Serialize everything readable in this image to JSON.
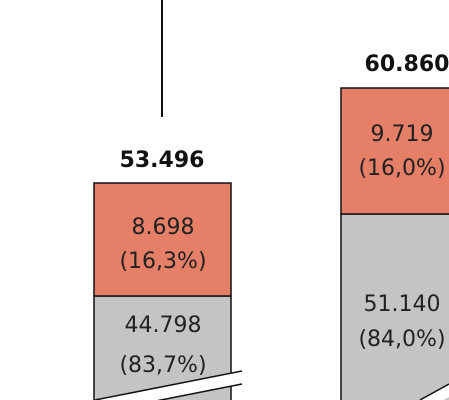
{
  "chart_data": {
    "type": "bar",
    "stacked": true,
    "axis_break": true,
    "bars": [
      {
        "total_label": "53.496",
        "total": 53496,
        "segments": [
          {
            "value": 44798,
            "label_value": "44.798",
            "label_share": "(83,7%)",
            "color": "#c4c4c4"
          },
          {
            "value": 8698,
            "label_value": "8.698",
            "label_share": "(16,3%)",
            "color": "#e57f67"
          }
        ]
      },
      {
        "total_label": "60.860",
        "total": 60860,
        "segments": [
          {
            "value": 51140,
            "label_value": "51.140",
            "label_share": "(84,0%)",
            "color": "#c4c4c4"
          },
          {
            "value": 9719,
            "label_value": "9.719",
            "label_share": "(16,0%)",
            "color": "#e57f67"
          }
        ]
      }
    ]
  }
}
